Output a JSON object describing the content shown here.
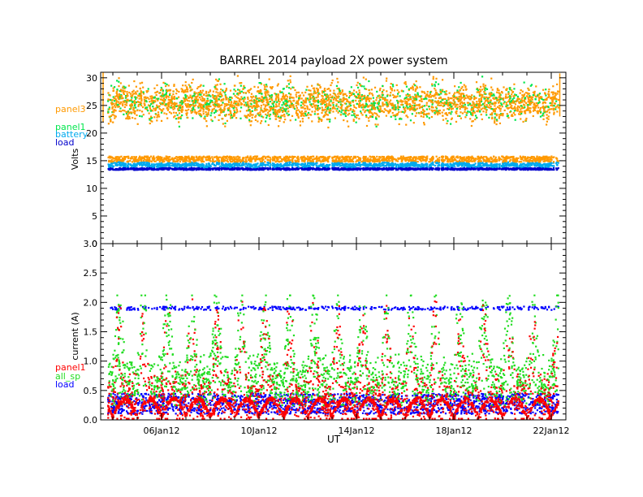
{
  "title": "BARREL 2014 payload 2X power system",
  "colors": {
    "panel3": "#ff9900",
    "panel1": "#00e64d",
    "battery": "#00aaee",
    "load": "#0000cc",
    "current_panel1": "#ff0000",
    "all_sp": "#22dd22",
    "current_load": "#0000ff"
  },
  "chart_data": [
    {
      "type": "scatter",
      "panel": "top",
      "title": "BARREL 2014 payload 2X power system",
      "xlabel": "",
      "ylabel": "Volts",
      "ylim": [
        0,
        31
      ],
      "yticks": [
        "0",
        "5",
        "10",
        "15",
        "20",
        "25",
        "30"
      ],
      "xlim_days": [
        3.5,
        22.6
      ],
      "xticks": [
        "06Jan12",
        "10Jan12",
        "14Jan12",
        "18Jan12",
        "22Jan12"
      ],
      "legend_placement": "left-outside",
      "series": [
        {
          "name": "panel3",
          "color": "#ff9900",
          "typical_range": [
            22.5,
            29.5
          ],
          "band_low": [
            14.8,
            15.8
          ]
        },
        {
          "name": "panel1",
          "color": "#00e64d",
          "typical_range": [
            22,
            29
          ]
        },
        {
          "name": "battery",
          "color": "#00aaee",
          "typical_range": [
            13.8,
            14.7
          ]
        },
        {
          "name": "load",
          "color": "#0000cc",
          "typical_range": [
            13.3,
            13.7
          ]
        }
      ]
    },
    {
      "type": "scatter",
      "panel": "bottom",
      "xlabel": "UT",
      "ylabel": "current (A)",
      "ylim": [
        0,
        3.0
      ],
      "yticks": [
        "0.0",
        "0.5",
        "1.0",
        "1.5",
        "2.0",
        "2.5",
        "3.0"
      ],
      "xlim_days": [
        3.5,
        22.6
      ],
      "xticks": [
        "06Jan12",
        "10Jan12",
        "14Jan12",
        "18Jan12",
        "22Jan12"
      ],
      "legend_placement": "left-outside",
      "series": [
        {
          "name": "panel1",
          "color": "#ff0000",
          "typical_range": [
            0,
            1.9
          ],
          "daily_cycle": true
        },
        {
          "name": "all_sp",
          "color": "#22dd22",
          "typical_range": [
            0.3,
            2.1
          ],
          "daily_cycle": true
        },
        {
          "name": "load",
          "color": "#0000ff",
          "typical_range": [
            0.1,
            0.45
          ],
          "peak_level": 1.9
        }
      ]
    }
  ]
}
